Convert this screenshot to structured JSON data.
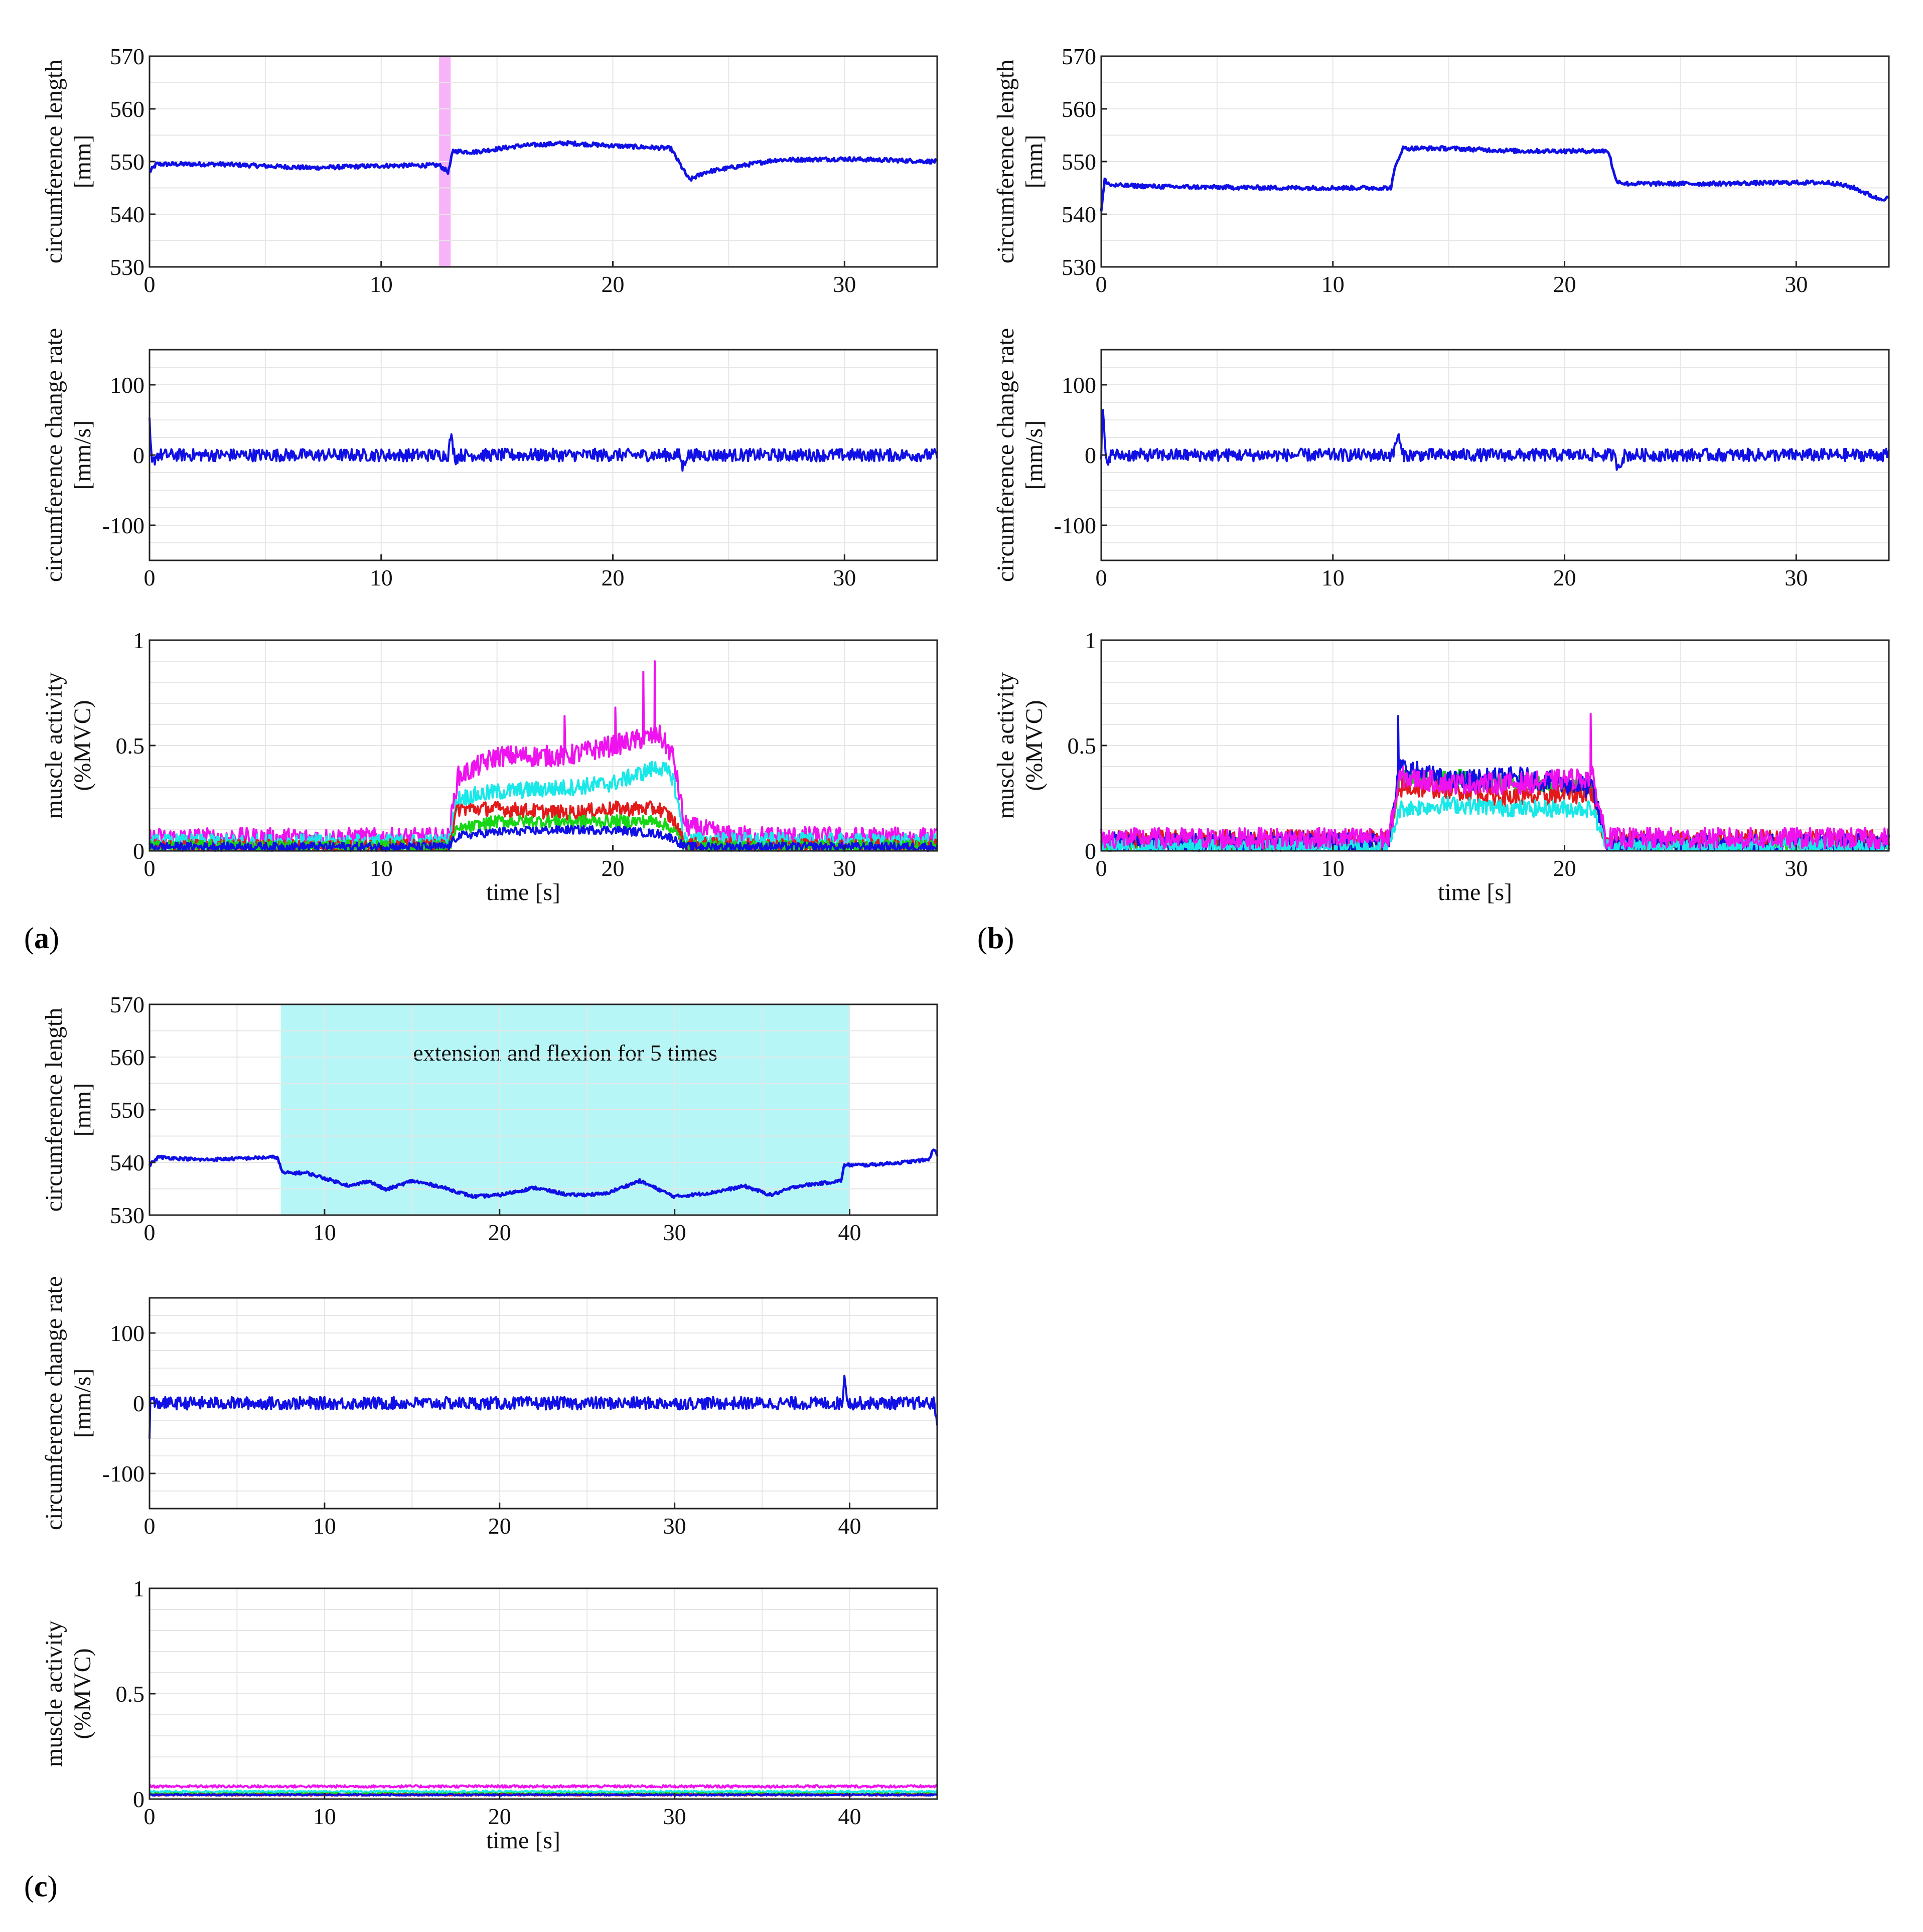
{
  "figure": {
    "colors": {
      "blue": "#1010e6",
      "green": "#16d616",
      "red": "#e21a1a",
      "cyan": "#19e8e8",
      "magenta": "#ee12ee",
      "highlight_magenta": "#f7b3f7",
      "highlight_cyan": "#b7f6f6",
      "grid": "#e6e6e6"
    },
    "shared_labels": {
      "circ_ylabel_1": "circumference length",
      "circ_ylabel_2": "[mm]",
      "rate_ylabel_1": "circumference change rate",
      "rate_ylabel_2": "[mm/s]",
      "emg_ylabel_1": "muscle activity",
      "emg_ylabel_2": "(%MVC)",
      "xlabel": "time [s]"
    },
    "panels": [
      {
        "id": "a",
        "label_open": "(",
        "label_letter": "a",
        "label_close": ")",
        "xlim": [
          0,
          34
        ],
        "xticks": [
          0,
          10,
          20,
          30
        ],
        "highlight": {
          "start": 12.5,
          "end": 13.0,
          "color": "magenta",
          "text": ""
        },
        "show_xlabel": true
      },
      {
        "id": "b",
        "label_open": "(",
        "label_letter": "b",
        "label_close": ")",
        "xlim": [
          0,
          34
        ],
        "xticks": [
          0,
          10,
          20,
          30
        ],
        "highlight": null,
        "show_xlabel": true
      },
      {
        "id": "c",
        "label_open": "(",
        "label_letter": "c",
        "label_close": ")",
        "xlim": [
          0,
          45
        ],
        "xticks": [
          0,
          10,
          20,
          30,
          40
        ],
        "highlight": {
          "start": 7.5,
          "end": 40,
          "color": "cyan",
          "text": "extension and flexion for 5 times"
        },
        "show_xlabel": true
      }
    ]
  },
  "chart_data": [
    {
      "panel": "a",
      "subplot": "circumference length",
      "type": "line",
      "xlabel": "",
      "ylabel": "circumference length [mm]",
      "xlim": [
        0,
        34
      ],
      "ylim": [
        530,
        570
      ],
      "xticks": [
        0,
        10,
        20,
        30
      ],
      "yticks": [
        530,
        540,
        550,
        560,
        570
      ],
      "series": [
        {
          "name": "circumference",
          "color": "blue",
          "noise": 0.4,
          "x": [
            0,
            0.3,
            3,
            7,
            10,
            12.5,
            12.9,
            13.1,
            14,
            16,
            18,
            20,
            22.5,
            23.3,
            24,
            27,
            30,
            34
          ],
          "y": [
            548,
            549.5,
            549.5,
            548.8,
            549.2,
            549.3,
            548,
            552,
            551.8,
            553,
            553.5,
            553,
            552.5,
            546.5,
            548,
            550.3,
            550.5,
            550
          ]
        }
      ]
    },
    {
      "panel": "a",
      "subplot": "circumference change rate",
      "type": "line",
      "xlabel": "",
      "ylabel": "circumference change rate [mm/s]",
      "xlim": [
        0,
        34
      ],
      "ylim": [
        -150,
        150
      ],
      "xticks": [
        0,
        10,
        20,
        30
      ],
      "yticks": [
        -100,
        0,
        100
      ],
      "series": [
        {
          "name": "change rate",
          "color": "blue",
          "noise": 9,
          "x": [
            0,
            0.1,
            0.3,
            12.9,
            13.0,
            13.2,
            13.4,
            22.9,
            23.0,
            23.2,
            34
          ],
          "y": [
            45,
            -15,
            0,
            0,
            28,
            -5,
            0,
            0,
            -18,
            0,
            0
          ]
        }
      ]
    },
    {
      "panel": "a",
      "subplot": "muscle activity",
      "type": "line",
      "xlabel": "time [s]",
      "ylabel": "muscle activity (%MVC)",
      "xlim": [
        0,
        34
      ],
      "ylim": [
        0,
        1
      ],
      "xticks": [
        0,
        10,
        20,
        30
      ],
      "yticks": [
        0,
        0.5,
        1
      ],
      "series": [
        {
          "name": "magenta",
          "color": "magenta",
          "noise": 0.05,
          "spikes": [
            [
              21.8,
              0.9
            ],
            [
              21.3,
              0.85
            ],
            [
              20.1,
              0.68
            ],
            [
              17.9,
              0.64
            ]
          ],
          "x": [
            0,
            12.9,
            13.3,
            15,
            18,
            20,
            22,
            22.6,
            23.1,
            25,
            34
          ],
          "y": [
            0.06,
            0.06,
            0.35,
            0.45,
            0.45,
            0.5,
            0.55,
            0.45,
            0.12,
            0.07,
            0.06
          ]
        },
        {
          "name": "cyan",
          "color": "cyan",
          "noise": 0.04,
          "x": [
            0,
            12.9,
            13.3,
            15,
            18,
            20,
            22,
            22.6,
            23.1,
            34
          ],
          "y": [
            0.04,
            0.04,
            0.25,
            0.28,
            0.3,
            0.32,
            0.4,
            0.35,
            0.05,
            0.04
          ]
        },
        {
          "name": "red",
          "color": "red",
          "noise": 0.035,
          "x": [
            0,
            12.9,
            13.3,
            15,
            18,
            20,
            22,
            22.6,
            23.1,
            34
          ],
          "y": [
            0.02,
            0.02,
            0.2,
            0.2,
            0.18,
            0.2,
            0.2,
            0.15,
            0.03,
            0.02
          ]
        },
        {
          "name": "green",
          "color": "green",
          "noise": 0.03,
          "x": [
            0,
            12.9,
            13.3,
            15,
            18,
            20,
            22,
            22.6,
            23.1,
            34
          ],
          "y": [
            0.02,
            0.02,
            0.1,
            0.14,
            0.14,
            0.14,
            0.14,
            0.1,
            0.02,
            0.02
          ]
        },
        {
          "name": "blue",
          "color": "blue",
          "noise": 0.02,
          "x": [
            0,
            12.9,
            13.3,
            15,
            18,
            20,
            22,
            22.6,
            23.1,
            34
          ],
          "y": [
            0.02,
            0.02,
            0.07,
            0.09,
            0.1,
            0.1,
            0.08,
            0.06,
            0.02,
            0.02
          ]
        }
      ]
    },
    {
      "panel": "b",
      "subplot": "circumference length",
      "type": "line",
      "xlabel": "",
      "ylabel": "circumference length [mm]",
      "xlim": [
        0,
        34
      ],
      "ylim": [
        530,
        570
      ],
      "xticks": [
        0,
        10,
        20,
        30
      ],
      "yticks": [
        530,
        540,
        550,
        560,
        570
      ],
      "series": [
        {
          "name": "circumference",
          "color": "blue",
          "noise": 0.4,
          "x": [
            0,
            0.15,
            0.4,
            3,
            8,
            12.5,
            12.7,
            13.0,
            15,
            18,
            20,
            21.9,
            22.2,
            22.6,
            26,
            30,
            31.5,
            32.5,
            33.5,
            34
          ],
          "y": [
            540.5,
            546.5,
            545.5,
            545.2,
            545.0,
            545.0,
            549,
            552.5,
            552.5,
            552,
            552,
            552,
            546.5,
            545.8,
            545.8,
            546,
            546,
            545,
            543,
            543
          ]
        }
      ]
    },
    {
      "panel": "b",
      "subplot": "circumference change rate",
      "type": "line",
      "xlabel": "",
      "ylabel": "circumference change rate [mm/s]",
      "xlim": [
        0,
        34
      ],
      "ylim": [
        -150,
        150
      ],
      "xticks": [
        0,
        10,
        20,
        30
      ],
      "yticks": [
        -100,
        0,
        100
      ],
      "series": [
        {
          "name": "change rate",
          "color": "blue",
          "noise": 9,
          "x": [
            0,
            0.05,
            0.2,
            0.4,
            12.6,
            12.8,
            13.0,
            22.1,
            22.3,
            22.6,
            34
          ],
          "y": [
            -8,
            75,
            -10,
            0,
            0,
            30,
            0,
            0,
            -16,
            0,
            0
          ]
        }
      ]
    },
    {
      "panel": "b",
      "subplot": "muscle activity",
      "type": "line",
      "xlabel": "time [s]",
      "ylabel": "muscle activity (%MVC)",
      "xlim": [
        0,
        34
      ],
      "ylim": [
        0,
        1
      ],
      "xticks": [
        0,
        10,
        20,
        30
      ],
      "yticks": [
        0,
        0.5,
        1
      ],
      "series": [
        {
          "name": "green",
          "color": "green",
          "noise": 0.04,
          "x": [
            0,
            12.4,
            12.9,
            15,
            18,
            21.2,
            21.8,
            34
          ],
          "y": [
            0.03,
            0.03,
            0.35,
            0.35,
            0.32,
            0.3,
            0.03,
            0.03
          ]
        },
        {
          "name": "red",
          "color": "red",
          "noise": 0.05,
          "x": [
            0,
            12.4,
            12.9,
            15,
            18,
            21.2,
            21.8,
            34
          ],
          "y": [
            0.05,
            0.05,
            0.3,
            0.3,
            0.25,
            0.28,
            0.05,
            0.05
          ]
        },
        {
          "name": "blue",
          "color": "blue",
          "noise": 0.05,
          "spikes": [
            [
              12.8,
              0.64
            ]
          ],
          "x": [
            0,
            12.4,
            12.9,
            15,
            18,
            21.2,
            21.8,
            34
          ],
          "y": [
            0.04,
            0.04,
            0.4,
            0.33,
            0.35,
            0.3,
            0.03,
            0.03
          ]
        },
        {
          "name": "cyan",
          "color": "cyan",
          "noise": 0.04,
          "x": [
            0,
            12.4,
            12.9,
            15,
            18,
            21.2,
            21.8,
            34
          ],
          "y": [
            0.02,
            0.02,
            0.2,
            0.22,
            0.2,
            0.2,
            0.02,
            0.02
          ]
        },
        {
          "name": "magenta",
          "color": "magenta",
          "noise": 0.05,
          "spikes": [
            [
              21.1,
              0.65
            ]
          ],
          "x": [
            0,
            12.4,
            12.9,
            15,
            18,
            21.2,
            21.8,
            34
          ],
          "y": [
            0.06,
            0.06,
            0.35,
            0.32,
            0.32,
            0.35,
            0.06,
            0.06
          ]
        }
      ]
    },
    {
      "panel": "c",
      "subplot": "circumference length",
      "type": "line",
      "xlabel": "",
      "ylabel": "circumference length [mm]",
      "xlim": [
        0,
        45
      ],
      "ylim": [
        530,
        570
      ],
      "xticks": [
        0,
        10,
        20,
        30,
        40
      ],
      "yticks": [
        530,
        540,
        550,
        560,
        570
      ],
      "annotation": "extension and flexion for 5 times",
      "series": [
        {
          "name": "circumference",
          "color": "blue",
          "noise": 0.3,
          "x": [
            0,
            0.5,
            3,
            7.3,
            7.6,
            9,
            10,
            11.5,
            12.5,
            13.5,
            15,
            16.5,
            18.5,
            20,
            22,
            24,
            26,
            28,
            30,
            32,
            34,
            35.5,
            37,
            39.5,
            39.7,
            41,
            43,
            44.5,
            44.8,
            45
          ],
          "y": [
            539.5,
            541,
            540.5,
            541,
            538,
            538,
            537,
            535.5,
            536.5,
            534.8,
            536.5,
            535.5,
            533.5,
            533.8,
            535.2,
            533.8,
            534,
            536.5,
            533.5,
            534.2,
            535.5,
            533.8,
            535.5,
            536.5,
            539.5,
            539.5,
            540,
            540.5,
            542.5,
            541.5
          ]
        }
      ]
    },
    {
      "panel": "c",
      "subplot": "circumference change rate",
      "type": "line",
      "xlabel": "",
      "ylabel": "circumference change rate [mm/s]",
      "xlim": [
        0,
        45
      ],
      "ylim": [
        -150,
        150
      ],
      "xticks": [
        0,
        10,
        20,
        30,
        40
      ],
      "yticks": [
        -100,
        0,
        100
      ],
      "series": [
        {
          "name": "change rate",
          "color": "blue",
          "noise": 9,
          "x": [
            0,
            0.05,
            0.3,
            39.6,
            39.7,
            39.9,
            44.8,
            45
          ],
          "y": [
            -50,
            5,
            0,
            0,
            45,
            0,
            0,
            -25
          ]
        }
      ]
    },
    {
      "panel": "c",
      "subplot": "muscle activity",
      "type": "line",
      "xlabel": "time [s]",
      "ylabel": "muscle activity (%MVC)",
      "xlim": [
        0,
        45
      ],
      "ylim": [
        0,
        1
      ],
      "xticks": [
        0,
        10,
        20,
        30,
        40
      ],
      "yticks": [
        0,
        0.5,
        1
      ],
      "series": [
        {
          "name": "magenta",
          "color": "magenta",
          "noise": 0.006,
          "x": [
            0,
            45
          ],
          "y": [
            0.06,
            0.06
          ]
        },
        {
          "name": "cyan",
          "color": "cyan",
          "noise": 0.005,
          "x": [
            0,
            45
          ],
          "y": [
            0.035,
            0.035
          ]
        },
        {
          "name": "green",
          "color": "green",
          "noise": 0.004,
          "x": [
            0,
            45
          ],
          "y": [
            0.025,
            0.025
          ]
        },
        {
          "name": "red",
          "color": "red",
          "noise": 0.004,
          "x": [
            0,
            45
          ],
          "y": [
            0.02,
            0.02
          ]
        },
        {
          "name": "blue",
          "color": "blue",
          "noise": 0.004,
          "x": [
            0,
            45
          ],
          "y": [
            0.02,
            0.02
          ]
        }
      ]
    }
  ]
}
